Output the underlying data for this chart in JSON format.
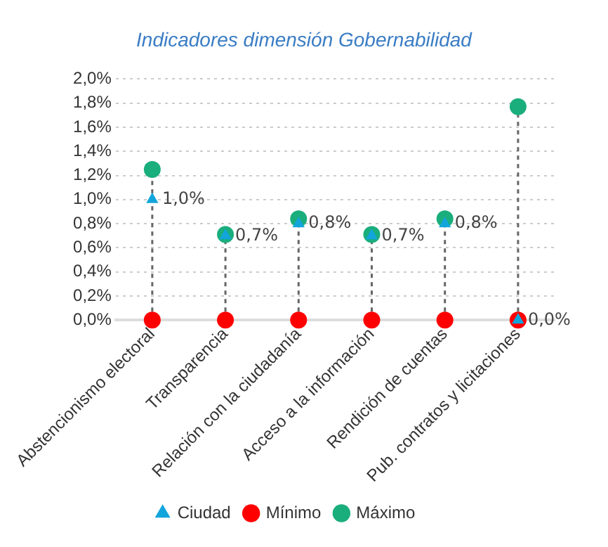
{
  "chart_data": {
    "type": "scatter",
    "title": "Indicadores dimensión Gobernabilidad",
    "categories": [
      "Abstencionismo electoral",
      "Transparencia",
      "Relación con la ciudadanía",
      "Acceso a la información",
      "Rendición de cuentas",
      "Pub. contratos y licitaciones"
    ],
    "series": [
      {
        "name": "Máximo",
        "color": "#1aae7c",
        "marker": "circle",
        "values": [
          1.25,
          0.71,
          0.84,
          0.71,
          0.84,
          1.77
        ]
      },
      {
        "name": "Mínimo",
        "color": "#ff0000",
        "marker": "circle",
        "values": [
          0,
          0,
          0,
          0,
          0,
          0
        ]
      },
      {
        "name": "Ciudad",
        "color": "#12a5dc",
        "marker": "triangle",
        "values": [
          1.0,
          0.7,
          0.8,
          0.7,
          0.8,
          0.0
        ],
        "value_labels": [
          "1,0%",
          "0,7%",
          "0,8%",
          "0,7%",
          "0,8%",
          "0,0%"
        ]
      }
    ],
    "ylim": [
      0,
      2
    ],
    "yticks": [
      {
        "value": 0,
        "label": "0,0%"
      },
      {
        "value": 0.2,
        "label": "0,2%"
      },
      {
        "value": 0.4,
        "label": "0,4%"
      },
      {
        "value": 0.6,
        "label": "0,6%"
      },
      {
        "value": 0.8,
        "label": "0,8%"
      },
      {
        "value": 1.0,
        "label": "1,0%"
      },
      {
        "value": 1.2,
        "label": "1,2%"
      },
      {
        "value": 1.4,
        "label": "1,4%"
      },
      {
        "value": 1.6,
        "label": "1,6%"
      },
      {
        "value": 1.8,
        "label": "1,8%"
      },
      {
        "value": 2.0,
        "label": "2,0%"
      }
    ],
    "grid": "y",
    "legend": "bottom"
  }
}
